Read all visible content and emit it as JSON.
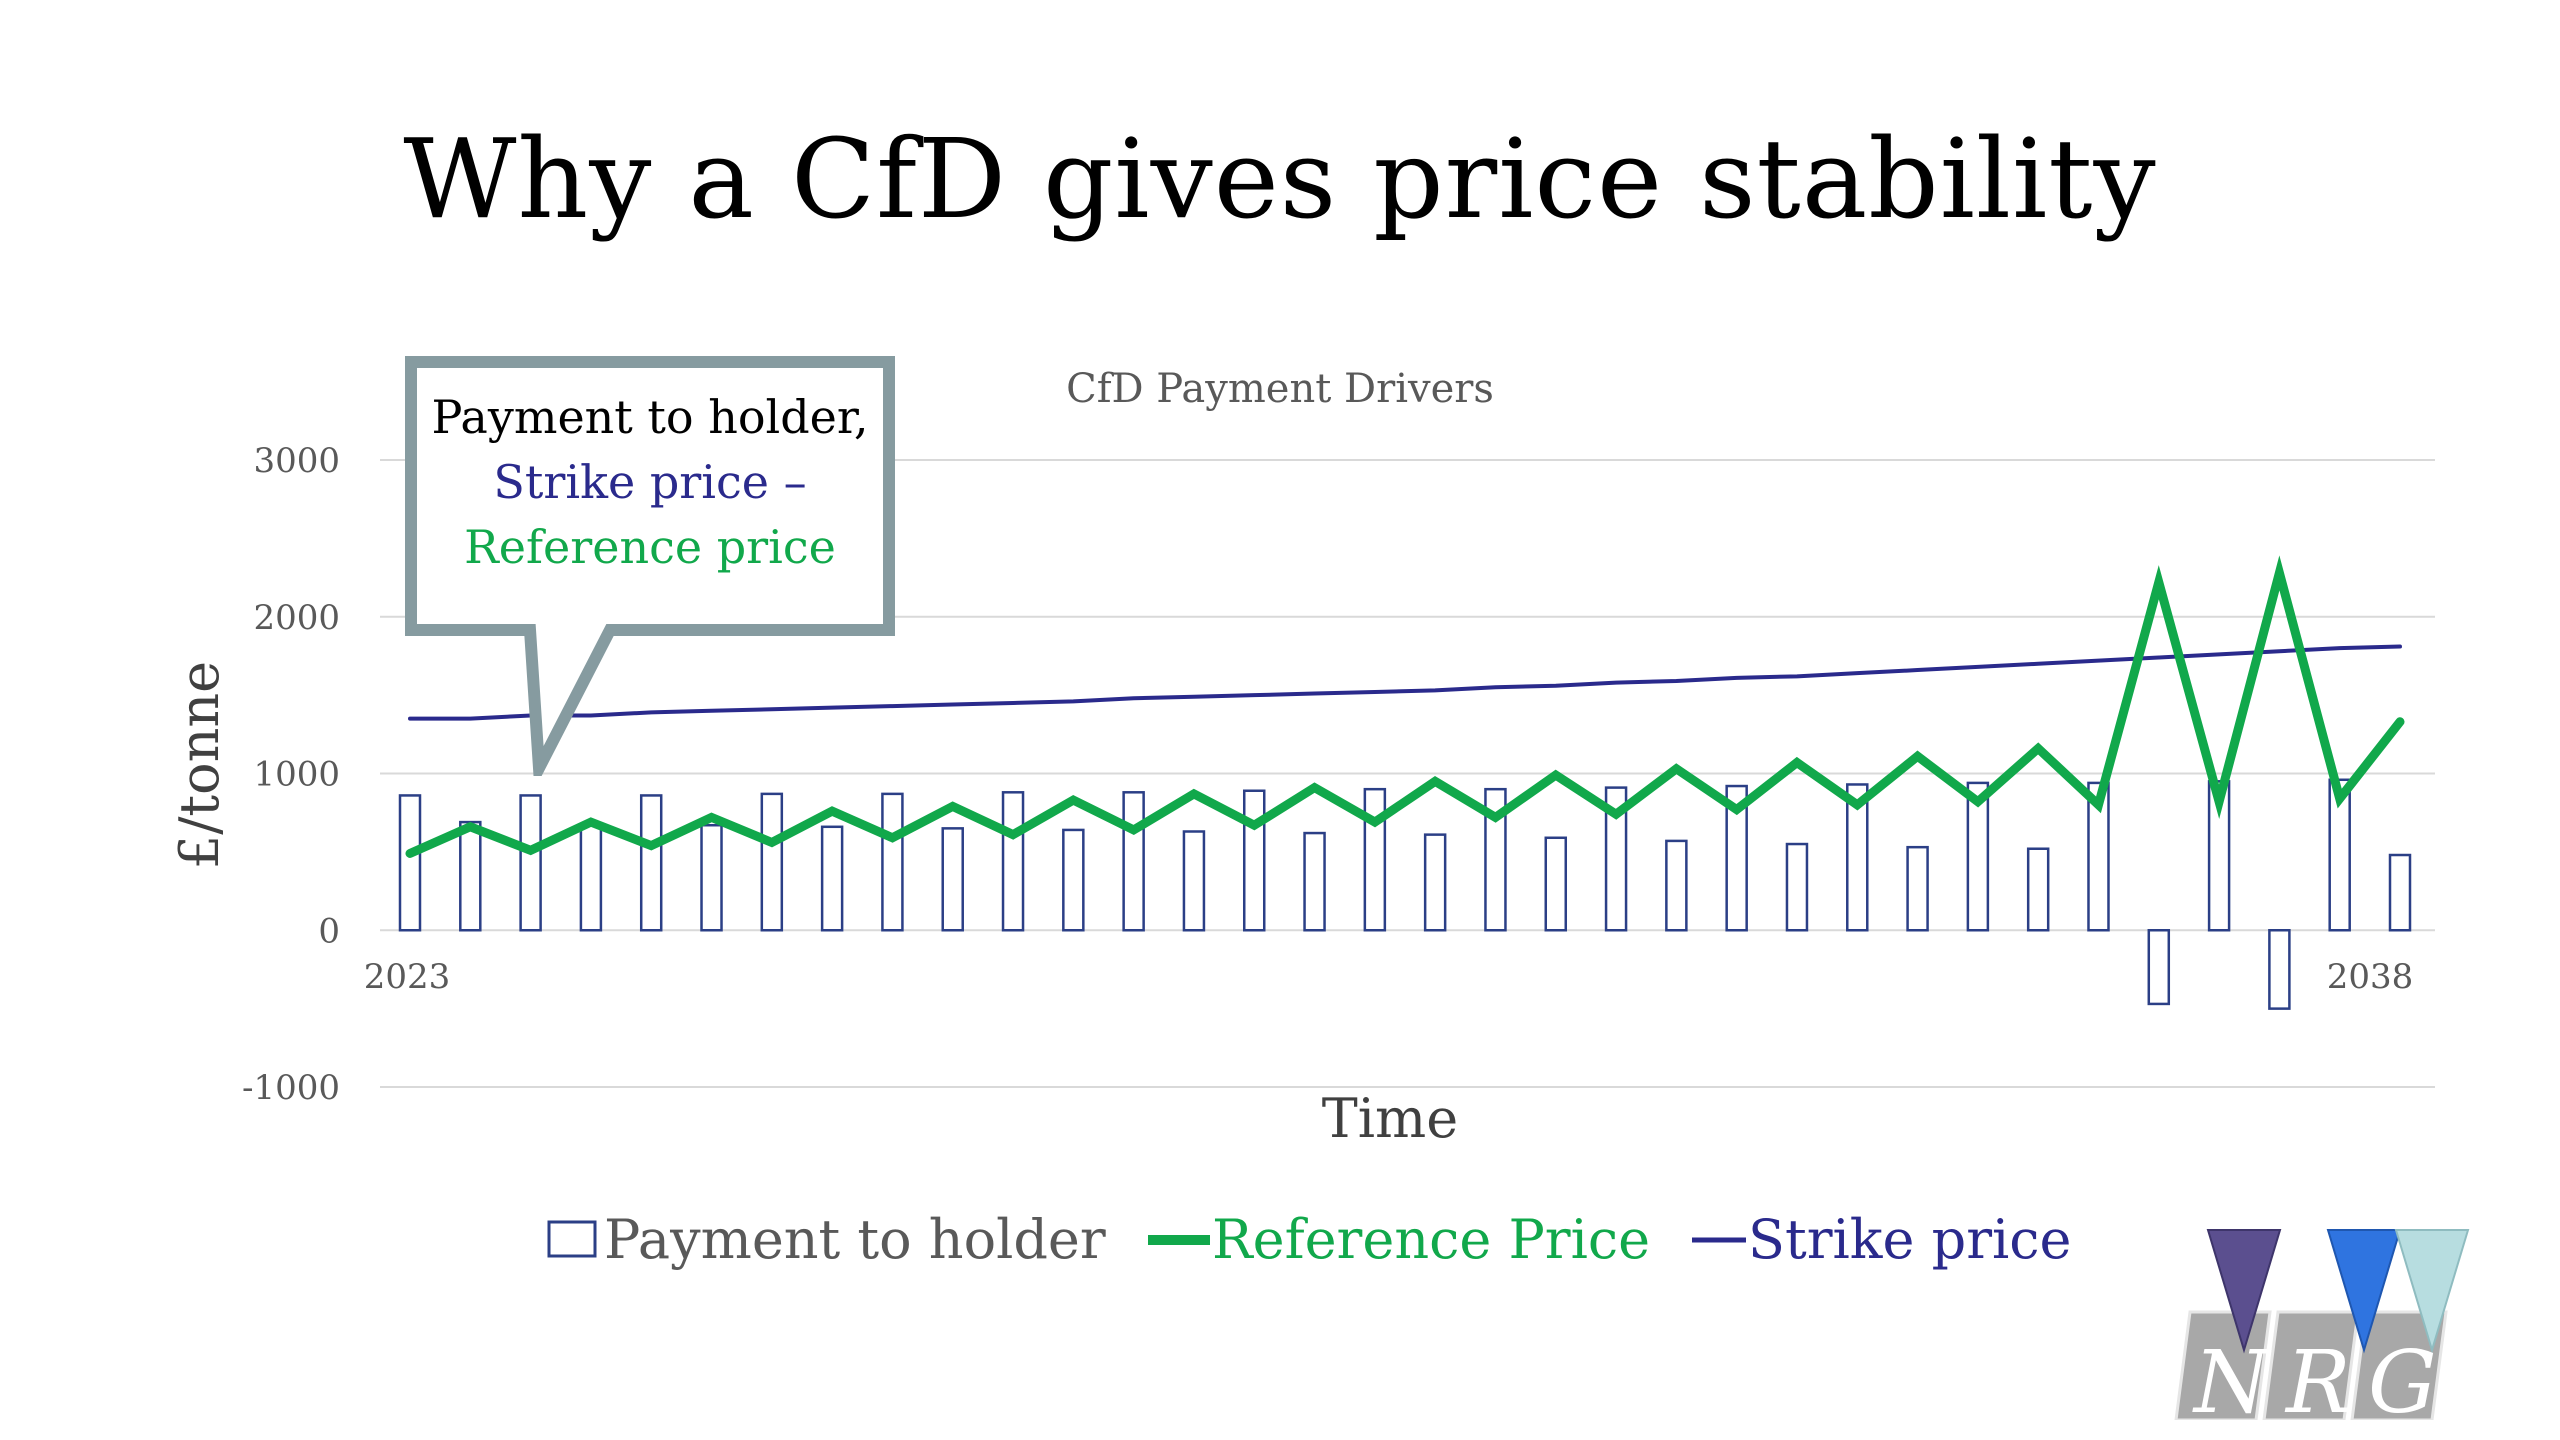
{
  "slide": {
    "title": "Why a CfD gives price stability"
  },
  "callout": {
    "line1": "Payment to holder,",
    "line2": "Strike price –",
    "line3": "Reference price"
  },
  "logo": {
    "letters": [
      "N",
      "R",
      "G"
    ],
    "triangle_colors": [
      "#5b4f8f",
      "#2f74e0",
      "#b7dde0"
    ]
  },
  "colors": {
    "payment_bar_stroke": "#2b3f86",
    "reference_line": "#11a84b",
    "strike_line": "#2a2a8c",
    "callout_border": "#869ba0",
    "gridline": "#d9d9d9"
  },
  "chart_data": {
    "type": "bar",
    "title": "CfD Payment Drivers",
    "xlabel": "Time",
    "ylabel": "£/tonne",
    "x_tick_labels": [
      "2023",
      "2038"
    ],
    "y_ticks": [
      -1000,
      0,
      1000,
      2000,
      3000
    ],
    "ylim": [
      -1000,
      3000
    ],
    "grid": true,
    "legend_position": "bottom",
    "series": [
      {
        "name": "Payment to holder",
        "kind": "bar",
        "values": [
          860,
          690,
          860,
          670,
          860,
          670,
          870,
          660,
          870,
          650,
          880,
          640,
          880,
          630,
          890,
          620,
          900,
          610,
          900,
          590,
          910,
          570,
          920,
          550,
          930,
          530,
          940,
          520,
          940,
          -470,
          950,
          -500,
          960,
          480
        ]
      },
      {
        "name": "Reference Price",
        "kind": "line",
        "values": [
          490,
          660,
          510,
          690,
          540,
          720,
          560,
          760,
          590,
          790,
          610,
          830,
          640,
          870,
          670,
          910,
          690,
          950,
          720,
          990,
          740,
          1030,
          770,
          1070,
          800,
          1110,
          820,
          1160,
          800,
          2220,
          820,
          2280,
          840,
          1330
        ]
      },
      {
        "name": "Strike price",
        "kind": "line",
        "values": [
          1350,
          1350,
          1370,
          1370,
          1390,
          1400,
          1410,
          1420,
          1430,
          1440,
          1450,
          1460,
          1480,
          1490,
          1500,
          1510,
          1520,
          1530,
          1550,
          1560,
          1580,
          1590,
          1610,
          1620,
          1640,
          1660,
          1680,
          1700,
          1720,
          1740,
          1760,
          1780,
          1800,
          1810
        ]
      }
    ]
  }
}
